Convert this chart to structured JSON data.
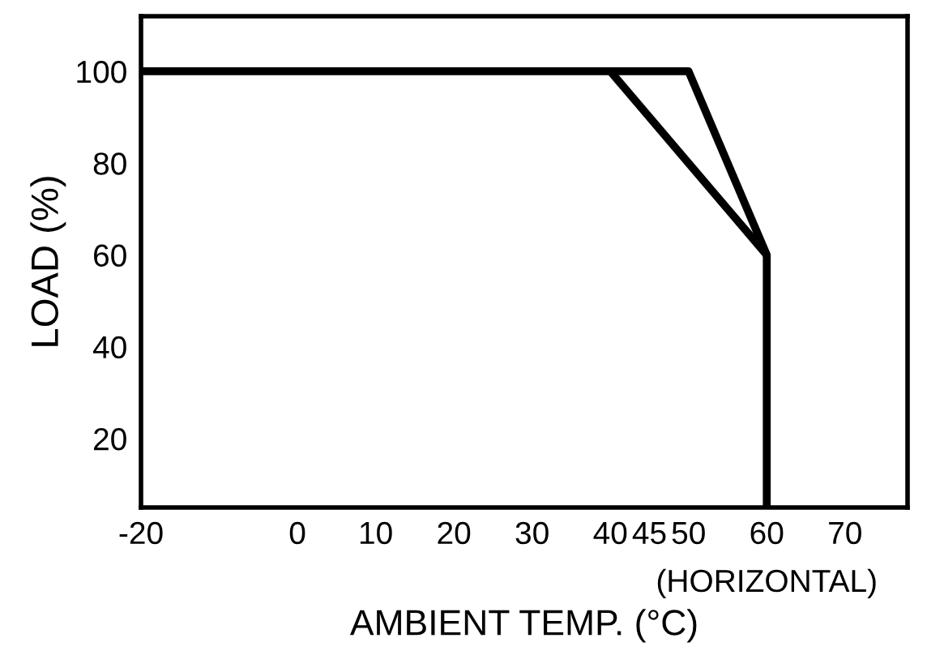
{
  "chart_data": {
    "type": "line",
    "xlabel": "AMBIENT TEMP. (°C)",
    "ylabel": "LOAD (%)",
    "annotations": [
      "(HORIZONTAL)"
    ],
    "series": [
      {
        "color": "#000000",
        "x": [
          -20,
          50,
          60,
          60
        ],
        "values": [
          100,
          100,
          60,
          5
        ]
      },
      {
        "color": "#000000",
        "x": [
          40,
          60
        ],
        "values": [
          100,
          60
        ]
      }
    ],
    "xlim": [
      -20,
      78
    ],
    "xticks": [
      -20,
      0,
      10,
      20,
      30,
      40,
      45,
      50,
      60,
      70
    ],
    "ylim": [
      5,
      112
    ],
    "yticks": [
      20,
      40,
      60,
      80,
      100
    ],
    "grid": false,
    "legend": false,
    "marker": "none",
    "line_style": "solid"
  }
}
